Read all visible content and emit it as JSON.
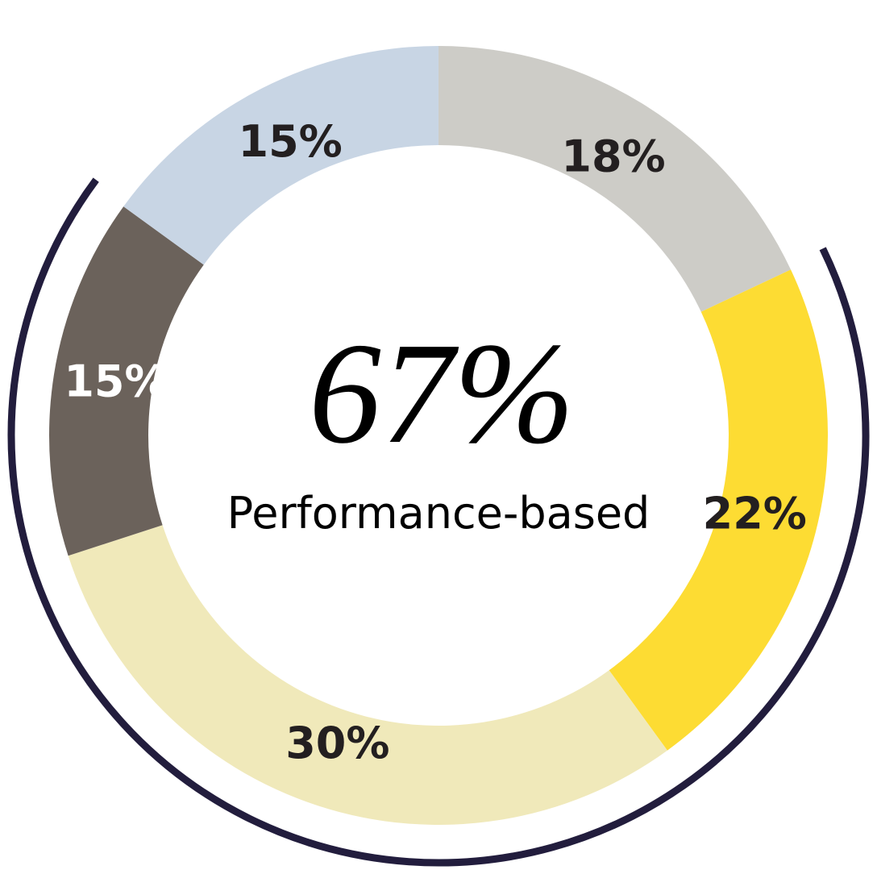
{
  "chart_data": {
    "type": "donut",
    "categories": [
      null,
      null,
      null,
      null,
      null
    ],
    "values": [
      18,
      22,
      30,
      15,
      15
    ],
    "value_labels": [
      "18%",
      "22%",
      "30%",
      "15%",
      "15%"
    ],
    "colors": [
      "#cdccc7",
      "#fddc33",
      "#f0e9ba",
      "#6b625b",
      "#c8d5e4"
    ],
    "label_colors": [
      "#231f20",
      "#231f20",
      "#231f20",
      "#ffffff",
      "#231f20"
    ],
    "center_text": "67%",
    "center_subtitle": "Performance-based"
  }
}
